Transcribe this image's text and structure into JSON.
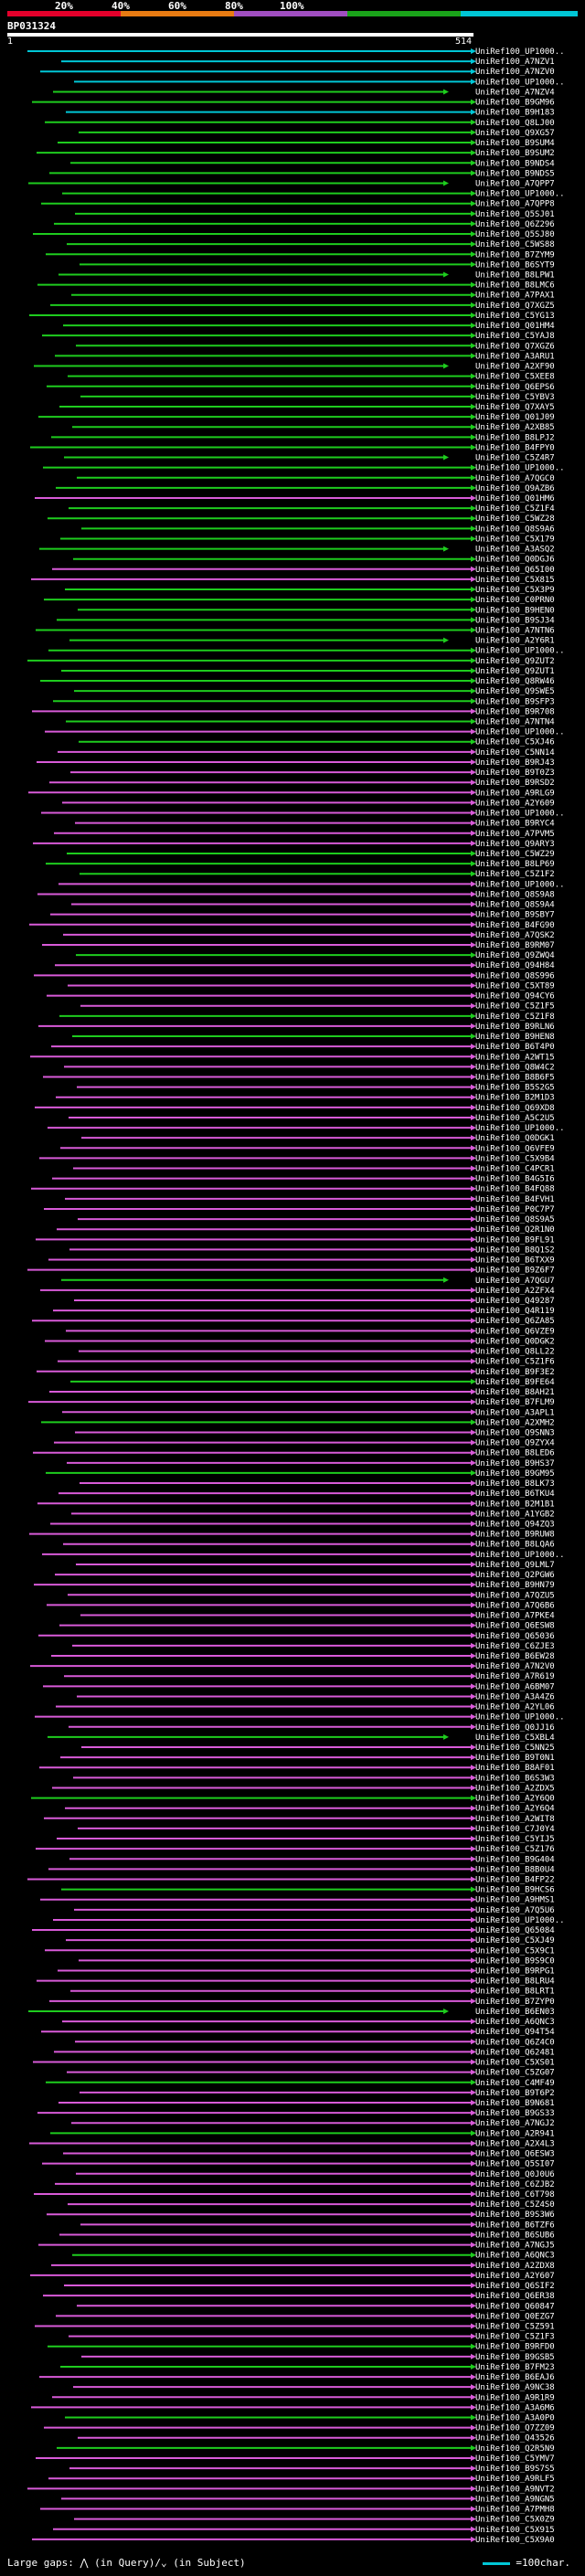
{
  "legend": {
    "labels": [
      "20%",
      "40%",
      "60%",
      "80%",
      "100%"
    ],
    "colors": [
      "#e4002b",
      "#e87b12",
      "#a04ec0",
      "#1aa31a",
      "#00c6d6"
    ]
  },
  "title": "BP031324",
  "ruler": {
    "start": "1",
    "end": "514"
  },
  "footer": {
    "large_gaps_text": "Large gaps: ⋀ (in Query)/⌄ (in Subject)",
    "scale_text": "=100char."
  },
  "hit_colors": {
    "cyan": "#00c6d6",
    "green": "#1ecc1e",
    "magenta": "#d85ad8"
  },
  "hits": [
    {
      "label": "UniRef100_UP1000..",
      "color": "cyan"
    },
    {
      "label": "UniRef100_A7NZV1",
      "color": "cyan"
    },
    {
      "label": "UniRef100_A7NZV0",
      "color": "cyan"
    },
    {
      "label": "UniRef100_UP1000..",
      "color": "cyan"
    },
    {
      "label": "UniRef100_A7NZV4",
      "color": "green"
    },
    {
      "label": "UniRef100_B9GM96",
      "color": "green"
    },
    {
      "label": "UniRef100_B9H183",
      "color": "cyan"
    },
    {
      "label": "UniRef100_Q8LJ00",
      "color": "green"
    },
    {
      "label": "UniRef100_Q9XG57",
      "color": "green"
    },
    {
      "label": "UniRef100_B9SUM4",
      "color": "green"
    },
    {
      "label": "UniRef100_B9SUM2",
      "color": "green"
    },
    {
      "label": "UniRef100_B9NDS4",
      "color": "green"
    },
    {
      "label": "UniRef100_B9NDS5",
      "color": "green"
    },
    {
      "label": "UniRef100_A7QPP7",
      "color": "green"
    },
    {
      "label": "UniRef100_UP1000..",
      "color": "green"
    },
    {
      "label": "UniRef100_A7QPP8",
      "color": "green"
    },
    {
      "label": "UniRef100_Q5SJ01",
      "color": "green"
    },
    {
      "label": "UniRef100_Q6Z296",
      "color": "green"
    },
    {
      "label": "UniRef100_Q5SJ80",
      "color": "green"
    },
    {
      "label": "UniRef100_C5WS88",
      "color": "green"
    },
    {
      "label": "UniRef100_B7ZYM9",
      "color": "green"
    },
    {
      "label": "UniRef100_B6SYT9",
      "color": "green"
    },
    {
      "label": "UniRef100_B8LPW1",
      "color": "green"
    },
    {
      "label": "UniRef100_B8LMC6",
      "color": "green"
    },
    {
      "label": "UniRef100_A7PAX1",
      "color": "green"
    },
    {
      "label": "UniRef100_Q7XGZ5",
      "color": "green"
    },
    {
      "label": "UniRef100_C5YG13",
      "color": "green"
    },
    {
      "label": "UniRef100_Q01HM4",
      "color": "green"
    },
    {
      "label": "UniRef100_C5YAJ8",
      "color": "green"
    },
    {
      "label": "UniRef100_Q7XGZ6",
      "color": "green"
    },
    {
      "label": "UniRef100_A3ARU1",
      "color": "green"
    },
    {
      "label": "UniRef100_A2XF90",
      "color": "green"
    },
    {
      "label": "UniRef100_C5XEE8",
      "color": "green"
    },
    {
      "label": "UniRef100_Q6EPS6",
      "color": "green"
    },
    {
      "label": "UniRef100_C5YBV3",
      "color": "green"
    },
    {
      "label": "UniRef100_Q7XAY5",
      "color": "green"
    },
    {
      "label": "UniRef100_Q01J09",
      "color": "green"
    },
    {
      "label": "UniRef100_A2XB85",
      "color": "green"
    },
    {
      "label": "UniRef100_B8LPJ2",
      "color": "green"
    },
    {
      "label": "UniRef100_B4FPY0",
      "color": "green"
    },
    {
      "label": "UniRef100_C5Z4R7",
      "color": "green"
    },
    {
      "label": "UniRef100_UP1000..",
      "color": "green"
    },
    {
      "label": "UniRef100_A7QGC0",
      "color": "green"
    },
    {
      "label": "UniRef100_Q9AZB6",
      "color": "green"
    },
    {
      "label": "UniRef100_Q01HM6",
      "color": "magenta"
    },
    {
      "label": "UniRef100_C5Z1F4",
      "color": "green"
    },
    {
      "label": "UniRef100_C5WZ28",
      "color": "green"
    },
    {
      "label": "UniRef100_Q8S9A6",
      "color": "green"
    },
    {
      "label": "UniRef100_C5X179",
      "color": "green"
    },
    {
      "label": "UniRef100_A3ASQ2",
      "color": "green"
    },
    {
      "label": "UniRef100_Q0DGJ6",
      "color": "green"
    },
    {
      "label": "UniRef100_Q65I00",
      "color": "magenta"
    },
    {
      "label": "UniRef100_C5X815",
      "color": "magenta"
    },
    {
      "label": "UniRef100_C5X3P9",
      "color": "green"
    },
    {
      "label": "UniRef100_C0PRN0",
      "color": "green"
    },
    {
      "label": "UniRef100_B9HEN0",
      "color": "green"
    },
    {
      "label": "UniRef100_B9SJ34",
      "color": "green"
    },
    {
      "label": "UniRef100_A7NTN6",
      "color": "green"
    },
    {
      "label": "UniRef100_A2Y6R1",
      "color": "green"
    },
    {
      "label": "UniRef100_UP1000..",
      "color": "green"
    },
    {
      "label": "UniRef100_Q9ZUT2",
      "color": "green"
    },
    {
      "label": "UniRef100_Q9ZUT1",
      "color": "green"
    },
    {
      "label": "UniRef100_Q8RW46",
      "color": "green"
    },
    {
      "label": "UniRef100_Q9SWE5",
      "color": "green"
    },
    {
      "label": "UniRef100_B9SFP3",
      "color": "green"
    },
    {
      "label": "UniRef100_B9R708",
      "color": "magenta"
    },
    {
      "label": "UniRef100_A7NTN4",
      "color": "green"
    },
    {
      "label": "UniRef100_UP1000..",
      "color": "magenta"
    },
    {
      "label": "UniRef100_C5XJ46",
      "color": "green"
    },
    {
      "label": "UniRef100_C5NN14",
      "color": "magenta"
    },
    {
      "label": "UniRef100_B9RJ43",
      "color": "magenta"
    },
    {
      "label": "UniRef100_B9T0Z3",
      "color": "magenta"
    },
    {
      "label": "UniRef100_B9RSD2",
      "color": "magenta"
    },
    {
      "label": "UniRef100_A9RLG9",
      "color": "magenta"
    },
    {
      "label": "UniRef100_A2Y609",
      "color": "magenta"
    },
    {
      "label": "UniRef100_UP1000..",
      "color": "magenta"
    },
    {
      "label": "UniRef100_B9RYC4",
      "color": "magenta"
    },
    {
      "label": "UniRef100_A7PVM5",
      "color": "magenta"
    },
    {
      "label": "UniRef100_Q9ARY3",
      "color": "magenta"
    },
    {
      "label": "UniRef100_C5WZ29",
      "color": "green"
    },
    {
      "label": "UniRef100_B8LP69",
      "color": "green"
    },
    {
      "label": "UniRef100_C5Z1F2",
      "color": "green"
    },
    {
      "label": "UniRef100_UP1000..",
      "color": "magenta"
    },
    {
      "label": "UniRef100_Q8S9A8",
      "color": "magenta"
    },
    {
      "label": "UniRef100_Q8S9A4",
      "color": "magenta"
    },
    {
      "label": "UniRef100_B9SBY7",
      "color": "magenta"
    },
    {
      "label": "UniRef100_B4FG90",
      "color": "magenta"
    },
    {
      "label": "UniRef100_A7QSK2",
      "color": "magenta"
    },
    {
      "label": "UniRef100_B9RM07",
      "color": "magenta"
    },
    {
      "label": "UniRef100_Q9ZWQ4",
      "color": "green"
    },
    {
      "label": "UniRef100_Q94H84",
      "color": "magenta"
    },
    {
      "label": "UniRef100_Q8S996",
      "color": "magenta"
    },
    {
      "label": "UniRef100_C5XT89",
      "color": "magenta"
    },
    {
      "label": "UniRef100_Q94CY6",
      "color": "magenta"
    },
    {
      "label": "UniRef100_C5Z1F5",
      "color": "magenta"
    },
    {
      "label": "UniRef100_C5Z1F8",
      "color": "green"
    },
    {
      "label": "UniRef100_B9RLN6",
      "color": "magenta"
    },
    {
      "label": "UniRef100_B9HEN8",
      "color": "green"
    },
    {
      "label": "UniRef100_B6T4P0",
      "color": "magenta"
    },
    {
      "label": "UniRef100_A2WT15",
      "color": "magenta"
    },
    {
      "label": "UniRef100_Q8W4C2",
      "color": "magenta"
    },
    {
      "label": "UniRef100_B8B6F5",
      "color": "magenta"
    },
    {
      "label": "UniRef100_B5S2G5",
      "color": "magenta"
    },
    {
      "label": "UniRef100_B2M1D3",
      "color": "magenta"
    },
    {
      "label": "UniRef100_Q69XD8",
      "color": "magenta"
    },
    {
      "label": "UniRef100_A5C2U5",
      "color": "magenta"
    },
    {
      "label": "UniRef100_UP1000..",
      "color": "magenta"
    },
    {
      "label": "UniRef100_Q0DGK1",
      "color": "magenta"
    },
    {
      "label": "UniRef100_Q6VFE9",
      "color": "magenta"
    },
    {
      "label": "UniRef100_C5X9B4",
      "color": "magenta"
    },
    {
      "label": "UniRef100_C4PCR1",
      "color": "magenta"
    },
    {
      "label": "UniRef100_B4G5I6",
      "color": "magenta"
    },
    {
      "label": "UniRef100_B4FQ88",
      "color": "magenta"
    },
    {
      "label": "UniRef100_B4FVH1",
      "color": "magenta"
    },
    {
      "label": "UniRef100_P0C7P7",
      "color": "magenta"
    },
    {
      "label": "UniRef100_Q8S9A5",
      "color": "magenta"
    },
    {
      "label": "UniRef100_Q2R1N0",
      "color": "magenta"
    },
    {
      "label": "UniRef100_B9FL91",
      "color": "magenta"
    },
    {
      "label": "UniRef100_B8Q1S2",
      "color": "magenta"
    },
    {
      "label": "UniRef100_B6TXX9",
      "color": "magenta"
    },
    {
      "label": "UniRef100_B9Z6F7",
      "color": "magenta"
    },
    {
      "label": "UniRef100_A7QGU7",
      "color": "green"
    },
    {
      "label": "UniRef100_A2ZFX4",
      "color": "magenta"
    },
    {
      "label": "UniRef100_Q49287",
      "color": "magenta"
    },
    {
      "label": "UniRef100_Q4R119",
      "color": "magenta"
    },
    {
      "label": "UniRef100_Q6ZA85",
      "color": "magenta"
    },
    {
      "label": "UniRef100_Q6VZE9",
      "color": "magenta"
    },
    {
      "label": "UniRef100_Q0DGK2",
      "color": "magenta"
    },
    {
      "label": "UniRef100_Q8LL22",
      "color": "magenta"
    },
    {
      "label": "UniRef100_C5Z1F6",
      "color": "magenta"
    },
    {
      "label": "UniRef100_B9F3E2",
      "color": "magenta"
    },
    {
      "label": "UniRef100_B9FE64",
      "color": "green"
    },
    {
      "label": "UniRef100_B8AH21",
      "color": "magenta"
    },
    {
      "label": "UniRef100_B7FLM9",
      "color": "magenta"
    },
    {
      "label": "UniRef100_A3APL1",
      "color": "magenta"
    },
    {
      "label": "UniRef100_A2XMH2",
      "color": "green"
    },
    {
      "label": "UniRef100_Q9SNN3",
      "color": "magenta"
    },
    {
      "label": "UniRef100_Q9ZYX4",
      "color": "magenta"
    },
    {
      "label": "UniRef100_B8LED6",
      "color": "magenta"
    },
    {
      "label": "UniRef100_B9HS37",
      "color": "magenta"
    },
    {
      "label": "UniRef100_B9GM95",
      "color": "green"
    },
    {
      "label": "UniRef100_B8LK73",
      "color": "magenta"
    },
    {
      "label": "UniRef100_B6TKU4",
      "color": "magenta"
    },
    {
      "label": "UniRef100_B2M1B1",
      "color": "magenta"
    },
    {
      "label": "UniRef100_A1YGB2",
      "color": "magenta"
    },
    {
      "label": "UniRef100_Q94ZQ3",
      "color": "magenta"
    },
    {
      "label": "UniRef100_B9RUW8",
      "color": "magenta"
    },
    {
      "label": "UniRef100_B8LQA6",
      "color": "magenta"
    },
    {
      "label": "UniRef100_UP1000..",
      "color": "magenta"
    },
    {
      "label": "UniRef100_Q9LML7",
      "color": "magenta"
    },
    {
      "label": "UniRef100_Q2PGW6",
      "color": "magenta"
    },
    {
      "label": "UniRef100_B9HN79",
      "color": "magenta"
    },
    {
      "label": "UniRef100_A7QZU5",
      "color": "magenta"
    },
    {
      "label": "UniRef100_A7Q6B6",
      "color": "magenta"
    },
    {
      "label": "UniRef100_A7PKE4",
      "color": "magenta"
    },
    {
      "label": "UniRef100_Q6ESW8",
      "color": "magenta"
    },
    {
      "label": "UniRef100_Q65036",
      "color": "magenta"
    },
    {
      "label": "UniRef100_C6ZJE3",
      "color": "magenta"
    },
    {
      "label": "UniRef100_B6EW28",
      "color": "magenta"
    },
    {
      "label": "UniRef100_A7N2V0",
      "color": "magenta"
    },
    {
      "label": "UniRef100_A7R619",
      "color": "magenta"
    },
    {
      "label": "UniRef100_A6BM07",
      "color": "magenta"
    },
    {
      "label": "UniRef100_A3A4Z6",
      "color": "magenta"
    },
    {
      "label": "UniRef100_A2YL06",
      "color": "magenta"
    },
    {
      "label": "UniRef100_UP1000..",
      "color": "magenta"
    },
    {
      "label": "UniRef100_Q0JJ16",
      "color": "magenta"
    },
    {
      "label": "UniRef100_C5XBL4",
      "color": "green"
    },
    {
      "label": "UniRef100_C5NN25",
      "color": "magenta"
    },
    {
      "label": "UniRef100_B9T0N1",
      "color": "magenta"
    },
    {
      "label": "UniRef100_B8AF01",
      "color": "magenta"
    },
    {
      "label": "UniRef100_B6S3W3",
      "color": "magenta"
    },
    {
      "label": "UniRef100_A2ZDX5",
      "color": "magenta"
    },
    {
      "label": "UniRef100_A2Y6Q0",
      "color": "green"
    },
    {
      "label": "UniRef100_A2Y6Q4",
      "color": "magenta"
    },
    {
      "label": "UniRef100_A2WIT8",
      "color": "magenta"
    },
    {
      "label": "UniRef100_C7J0Y4",
      "color": "magenta"
    },
    {
      "label": "UniRef100_C5YIJ5",
      "color": "magenta"
    },
    {
      "label": "UniRef100_C5Z176",
      "color": "magenta"
    },
    {
      "label": "UniRef100_B9G404",
      "color": "magenta"
    },
    {
      "label": "UniRef100_B8B0U4",
      "color": "magenta"
    },
    {
      "label": "UniRef100_B4FP22",
      "color": "magenta"
    },
    {
      "label": "UniRef100_B9HCS6",
      "color": "green"
    },
    {
      "label": "UniRef100_A9HMS1",
      "color": "magenta"
    },
    {
      "label": "UniRef100_A7Q5U6",
      "color": "magenta"
    },
    {
      "label": "UniRef100_UP1000..",
      "color": "magenta"
    },
    {
      "label": "UniRef100_Q65084",
      "color": "magenta"
    },
    {
      "label": "UniRef100_C5XJ49",
      "color": "magenta"
    },
    {
      "label": "UniRef100_C5X9C1",
      "color": "magenta"
    },
    {
      "label": "UniRef100_B9S9C0",
      "color": "magenta"
    },
    {
      "label": "UniRef100_B9RPG1",
      "color": "magenta"
    },
    {
      "label": "UniRef100_B8LRU4",
      "color": "magenta"
    },
    {
      "label": "UniRef100_B8LRT1",
      "color": "magenta"
    },
    {
      "label": "UniRef100_B7ZYP0",
      "color": "magenta"
    },
    {
      "label": "UniRef100_B6EN03",
      "color": "green"
    },
    {
      "label": "UniRef100_A6QNC3",
      "color": "magenta"
    },
    {
      "label": "UniRef100_Q94T54",
      "color": "magenta"
    },
    {
      "label": "UniRef100_Q6Z4C0",
      "color": "magenta"
    },
    {
      "label": "UniRef100_Q62481",
      "color": "magenta"
    },
    {
      "label": "UniRef100_C5XS01",
      "color": "magenta"
    },
    {
      "label": "UniRef100_C5ZG07",
      "color": "magenta"
    },
    {
      "label": "UniRef100_C4MF49",
      "color": "green"
    },
    {
      "label": "UniRef100_B9T6P2",
      "color": "magenta"
    },
    {
      "label": "UniRef100_B9N681",
      "color": "magenta"
    },
    {
      "label": "UniRef100_B9GS33",
      "color": "magenta"
    },
    {
      "label": "UniRef100_A7NGJ2",
      "color": "magenta"
    },
    {
      "label": "UniRef100_A2R941",
      "color": "green"
    },
    {
      "label": "UniRef100_A2X4L3",
      "color": "magenta"
    },
    {
      "label": "UniRef100_Q6ESW3",
      "color": "magenta"
    },
    {
      "label": "UniRef100_Q5SI07",
      "color": "magenta"
    },
    {
      "label": "UniRef100_Q0J0U6",
      "color": "magenta"
    },
    {
      "label": "UniRef100_C6ZJB2",
      "color": "magenta"
    },
    {
      "label": "UniRef100_C6T798",
      "color": "magenta"
    },
    {
      "label": "UniRef100_C5Z4S0",
      "color": "magenta"
    },
    {
      "label": "UniRef100_B9S3W6",
      "color": "magenta"
    },
    {
      "label": "UniRef100_B6TZF6",
      "color": "magenta"
    },
    {
      "label": "UniRef100_B6SUB6",
      "color": "magenta"
    },
    {
      "label": "UniRef100_A7NGJ5",
      "color": "magenta"
    },
    {
      "label": "UniRef100_A6QNC3",
      "color": "green"
    },
    {
      "label": "UniRef100_A2ZDX8",
      "color": "magenta"
    },
    {
      "label": "UniRef100_A2Y607",
      "color": "magenta"
    },
    {
      "label": "UniRef100_Q6SIF2",
      "color": "magenta"
    },
    {
      "label": "UniRef100_Q6ER38",
      "color": "magenta"
    },
    {
      "label": "UniRef100_Q60847",
      "color": "magenta"
    },
    {
      "label": "UniRef100_Q0EZG7",
      "color": "magenta"
    },
    {
      "label": "UniRef100_C5Z591",
      "color": "magenta"
    },
    {
      "label": "UniRef100_C5Z1F3",
      "color": "magenta"
    },
    {
      "label": "UniRef100_B9RFD0",
      "color": "green"
    },
    {
      "label": "UniRef100_B9GSB5",
      "color": "magenta"
    },
    {
      "label": "UniRef100_B7FM23",
      "color": "green"
    },
    {
      "label": "UniRef100_B6EAJ6",
      "color": "magenta"
    },
    {
      "label": "UniRef100_A9NC38",
      "color": "magenta"
    },
    {
      "label": "UniRef100_A9R1R9",
      "color": "magenta"
    },
    {
      "label": "UniRef100_A3A6M6",
      "color": "magenta"
    },
    {
      "label": "UniRef100_A3A0P0",
      "color": "green"
    },
    {
      "label": "UniRef100_Q7ZZ09",
      "color": "magenta"
    },
    {
      "label": "UniRef100_Q43526",
      "color": "magenta"
    },
    {
      "label": "UniRef100_Q2R5N9",
      "color": "green"
    },
    {
      "label": "UniRef100_C5YMV7",
      "color": "magenta"
    },
    {
      "label": "UniRef100_B9S7S5",
      "color": "magenta"
    },
    {
      "label": "UniRef100_A9RLF5",
      "color": "magenta"
    },
    {
      "label": "UniRef100_A9NVT2",
      "color": "magenta"
    },
    {
      "label": "UniRef100_A9NGN5",
      "color": "magenta"
    },
    {
      "label": "UniRef100_A7PMH8",
      "color": "magenta"
    },
    {
      "label": "UniRef100_C5X0Z9",
      "color": "magenta"
    },
    {
      "label": "UniRef100_C5X915",
      "color": "magenta"
    },
    {
      "label": "UniRef100_C5X9A0",
      "color": "magenta"
    }
  ]
}
